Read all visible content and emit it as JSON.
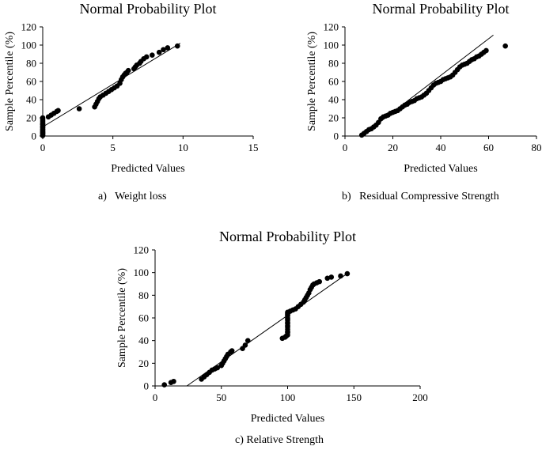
{
  "chart_data": [
    {
      "id": "a",
      "type": "scatter",
      "title": "Normal Probability Plot",
      "xlabel": "Predicted Values",
      "ylabel": "Sample Percentile (%)",
      "xlim": [
        0,
        15
      ],
      "ylim": [
        0,
        120
      ],
      "xticks": [
        0,
        5,
        10,
        15
      ],
      "yticks": [
        0,
        20,
        40,
        60,
        80,
        100,
        120
      ],
      "caption": "a)   Weight loss",
      "trendline": {
        "x": [
          0,
          9.8
        ],
        "y": [
          10,
          102
        ]
      },
      "series": [
        {
          "x": [
            0,
            0,
            0,
            0,
            0,
            0,
            0,
            0,
            0,
            0,
            0,
            0,
            0,
            0,
            0,
            0,
            0,
            0,
            0,
            0,
            0.4,
            0.6,
            0.8,
            1.0,
            1.1,
            2.6,
            3.7,
            3.8,
            3.9,
            4.0,
            4.1,
            4.3,
            4.5,
            4.7,
            4.9,
            5.1,
            5.3,
            5.5,
            5.6,
            5.7,
            5.8,
            5.9,
            6.0,
            6.1,
            6.5,
            6.6,
            6.7,
            6.9,
            7.0,
            7.2,
            7.4,
            7.8,
            8.3,
            8.6,
            8.9,
            9.6
          ],
          "y": [
            0.5,
            2,
            3.5,
            5,
            6.5,
            8,
            9.5,
            11,
            12.5,
            14,
            15.5,
            17,
            18.5,
            20,
            1,
            3,
            4.5,
            7,
            10,
            13,
            21,
            23,
            25,
            27,
            28,
            30,
            32,
            35,
            38,
            41,
            43,
            45,
            47,
            49,
            51,
            53,
            55,
            58,
            62,
            65,
            67,
            69,
            70,
            72,
            74,
            76,
            78,
            80,
            82,
            85,
            87,
            89,
            92,
            95,
            97,
            99
          ]
        }
      ]
    },
    {
      "id": "b",
      "type": "scatter",
      "title": "Normal Probability Plot",
      "xlabel": "Predicted Values",
      "ylabel": "Sample Percentile (%)",
      "xlim": [
        0,
        80
      ],
      "ylim": [
        0,
        120
      ],
      "xticks": [
        0,
        20,
        40,
        60,
        80
      ],
      "yticks": [
        0,
        20,
        40,
        60,
        80,
        100,
        120
      ],
      "caption": "b)   Residual Compressive Strength",
      "trendline": {
        "x": [
          7,
          62
        ],
        "y": [
          0,
          111
        ]
      },
      "series": [
        {
          "x": [
            7,
            8,
            9,
            10,
            11,
            12,
            13,
            14,
            15,
            16,
            17,
            18,
            19,
            20,
            21,
            22,
            23,
            24,
            25,
            26,
            27,
            28,
            29,
            30,
            31,
            32,
            33,
            34,
            35,
            36,
            37,
            38,
            39,
            40,
            41,
            42,
            43,
            44,
            45,
            46,
            47,
            48,
            49,
            50,
            51,
            52,
            53,
            54,
            55,
            56,
            57,
            58,
            59,
            67
          ],
          "y": [
            1,
            3,
            5,
            7,
            8,
            10,
            12,
            15,
            19,
            21,
            22,
            23,
            25,
            26,
            27,
            28,
            30,
            32,
            34,
            35,
            37,
            38,
            39,
            41,
            42,
            43,
            45,
            47,
            50,
            53,
            56,
            58,
            59,
            60,
            62,
            63,
            64,
            65,
            67,
            70,
            73,
            76,
            78,
            79,
            80,
            82,
            84,
            85,
            87,
            88,
            90,
            92,
            94,
            99
          ]
        }
      ]
    },
    {
      "id": "c",
      "type": "scatter",
      "title": "Normal Probability Plot",
      "xlabel": "Predicted Values",
      "ylabel": "Sample Percentile (%)",
      "xlim": [
        0,
        200
      ],
      "ylim": [
        0,
        120
      ],
      "xticks": [
        0,
        50,
        100,
        150,
        200
      ],
      "yticks": [
        0,
        20,
        40,
        60,
        80,
        100,
        120
      ],
      "caption": "c) Relative Strength",
      "trendline": {
        "x": [
          24,
          146
        ],
        "y": [
          0,
          100
        ]
      },
      "series": [
        {
          "x": [
            7,
            12,
            14,
            35,
            37,
            39,
            41,
            43,
            45,
            47,
            50,
            51,
            52,
            53,
            54,
            55,
            57,
            58,
            66,
            68,
            70,
            96,
            98,
            99,
            100,
            100,
            100,
            100,
            100,
            100,
            100,
            100,
            100,
            100,
            100,
            100,
            100,
            100,
            100,
            102,
            104,
            106,
            108,
            110,
            112,
            113,
            114,
            115,
            116,
            117,
            118,
            119,
            120,
            122,
            124,
            130,
            133,
            140,
            145
          ],
          "y": [
            1,
            3,
            4,
            6,
            8,
            10,
            12,
            14,
            15,
            16,
            18,
            20,
            22,
            24,
            26,
            28,
            30,
            31,
            33,
            36,
            40,
            42,
            43,
            44,
            45,
            47,
            48,
            50,
            52,
            53,
            55,
            56,
            58,
            59,
            60,
            62,
            63,
            64,
            65,
            66,
            67,
            68,
            70,
            72,
            74,
            76,
            78,
            80,
            82,
            85,
            87,
            89,
            90,
            91,
            92,
            95,
            96,
            97,
            99
          ]
        }
      ]
    }
  ]
}
